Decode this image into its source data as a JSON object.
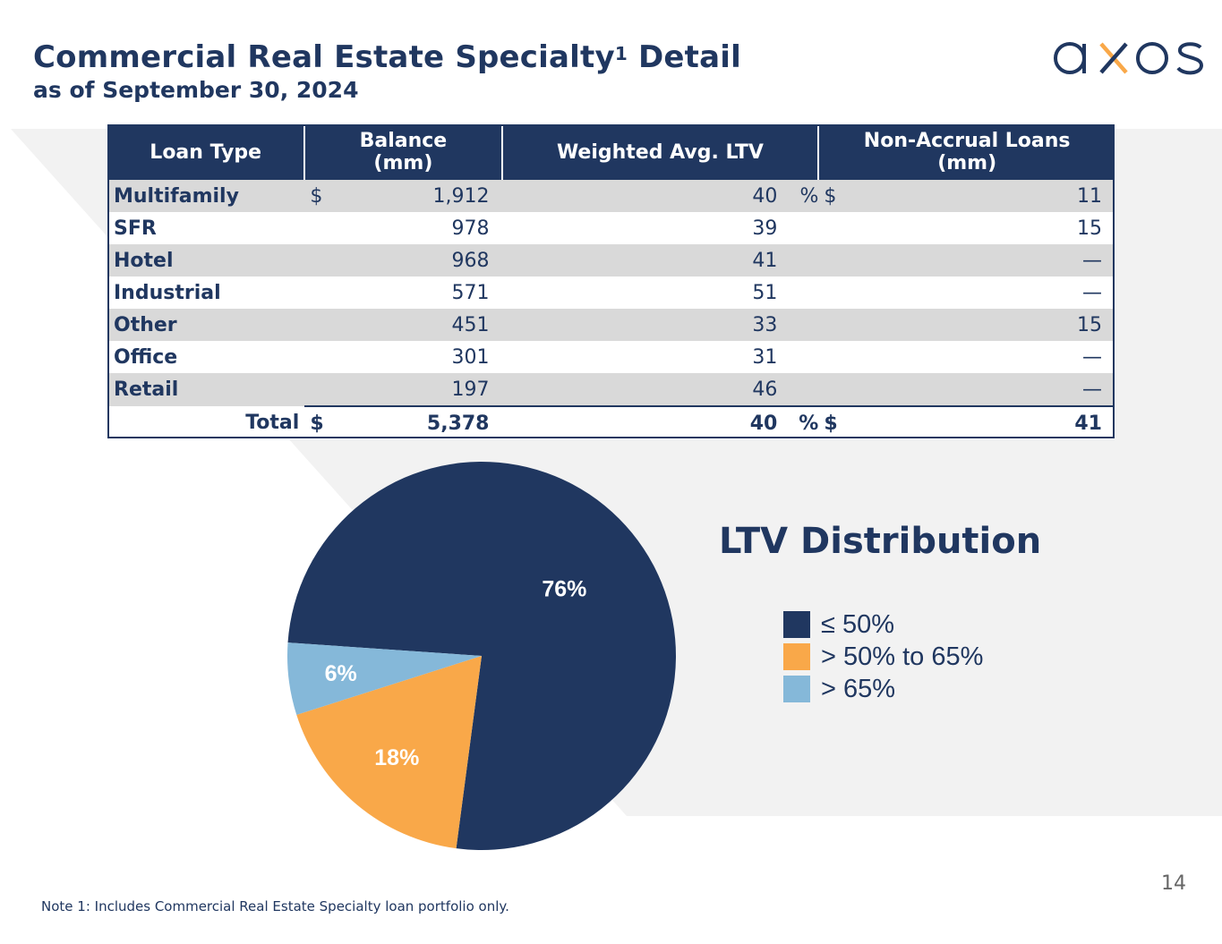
{
  "header": {
    "title": "Commercial Real Estate Specialty",
    "title_superscript": "1",
    "title_suffix": " Detail",
    "subtitle": "as of September 30, 2024",
    "logo_text": "axos"
  },
  "table": {
    "columns": [
      "Loan Type",
      "Balance (mm)",
      "Weighted Avg. LTV",
      "Non-Accrual Loans (mm)"
    ],
    "rows": [
      {
        "type": "Multifamily",
        "bal_cur": "$",
        "balance": "1,912",
        "ltv": "40",
        "ltv_sym": "%",
        "nal_cur": "$",
        "non_accrual": "11"
      },
      {
        "type": "SFR",
        "bal_cur": "",
        "balance": "978",
        "ltv": "39",
        "ltv_sym": "",
        "nal_cur": "",
        "non_accrual": "15"
      },
      {
        "type": "Hotel",
        "bal_cur": "",
        "balance": "968",
        "ltv": "41",
        "ltv_sym": "",
        "nal_cur": "",
        "non_accrual": "—"
      },
      {
        "type": "Industrial",
        "bal_cur": "",
        "balance": "571",
        "ltv": "51",
        "ltv_sym": "",
        "nal_cur": "",
        "non_accrual": "—"
      },
      {
        "type": "Other",
        "bal_cur": "",
        "balance": "451",
        "ltv": "33",
        "ltv_sym": "",
        "nal_cur": "",
        "non_accrual": "15"
      },
      {
        "type": "Office",
        "bal_cur": "",
        "balance": "301",
        "ltv": "31",
        "ltv_sym": "",
        "nal_cur": "",
        "non_accrual": "—"
      },
      {
        "type": "Retail",
        "bal_cur": "",
        "balance": "197",
        "ltv": "46",
        "ltv_sym": "",
        "nal_cur": "",
        "non_accrual": "—"
      }
    ],
    "total": {
      "label": "Total",
      "bal_cur": "$",
      "balance": "5,378",
      "ltv": "40",
      "ltv_sym": "%",
      "nal_cur": "$",
      "non_accrual": "41"
    }
  },
  "chart_data": {
    "type": "pie",
    "title": "LTV Distribution",
    "categories": [
      "≤ 50%",
      "> 50% to 65%",
      "> 65%"
    ],
    "values": [
      76,
      18,
      6
    ],
    "labels": [
      "76%",
      "18%",
      "6%"
    ],
    "colors": [
      "#203760",
      "#f9a849",
      "#85b8d9"
    ],
    "legend_position": "right"
  },
  "footer": {
    "page_number": "14",
    "note": "Note 1: Includes Commercial Real Estate Specialty loan portfolio only."
  },
  "colors": {
    "navy": "#203760",
    "orange": "#f9a849",
    "light_blue": "#85b8d9",
    "band": "#f2f2f2"
  }
}
